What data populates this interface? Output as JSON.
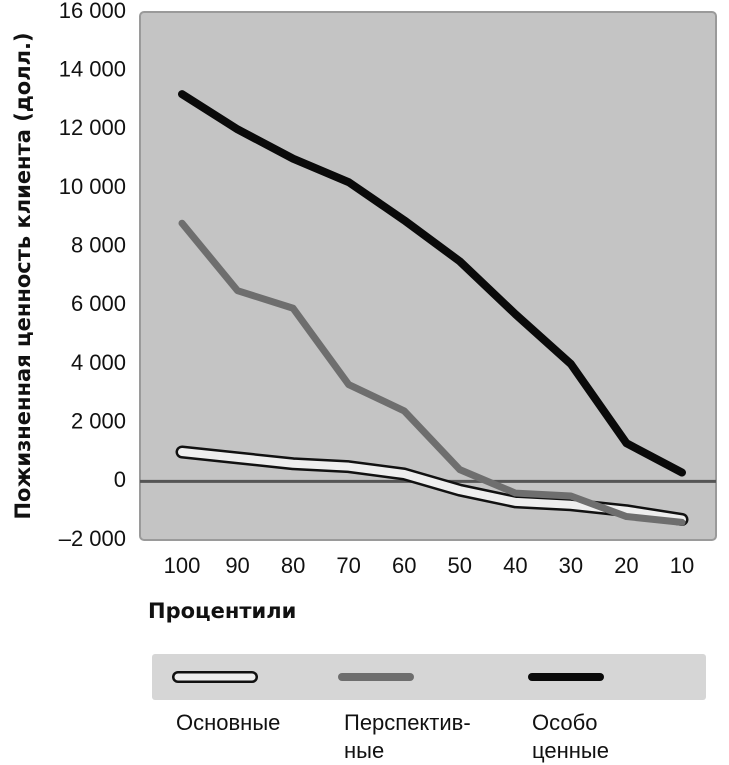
{
  "chart_data": {
    "type": "line",
    "title": "",
    "xlabel": "Процентили",
    "ylabel": "Пожизненная ценность клиента (долл.)",
    "x": [
      100,
      90,
      80,
      70,
      60,
      50,
      40,
      30,
      20,
      10
    ],
    "x_tick_labels": [
      "100",
      "90",
      "80",
      "70",
      "60",
      "50",
      "40",
      "30",
      "20",
      "10"
    ],
    "y_ticks": [
      16000,
      14000,
      12000,
      10000,
      8000,
      6000,
      4000,
      2000,
      0,
      -2000
    ],
    "y_tick_labels": [
      "16 000",
      "14 000",
      "12 000",
      "10 000",
      "8 000",
      "6 000",
      "4 000",
      "2 000",
      "0",
      "–2 000"
    ],
    "ylim": [
      -2000,
      16000
    ],
    "grid": false,
    "zero_line": true,
    "legend_position": "bottom",
    "series": [
      {
        "name": "Основные",
        "legend_lines": [
          "Основные"
        ],
        "style": "outlined",
        "color": "#eeeeee",
        "outline_color": "#111111",
        "values": [
          1000,
          800,
          600,
          500,
          250,
          -300,
          -700,
          -800,
          -1000,
          -1300
        ]
      },
      {
        "name": "Перспективные",
        "legend_lines": [
          "Перспектив-",
          "ные"
        ],
        "style": "solid",
        "color": "#6e6e6e",
        "values": [
          8800,
          6500,
          5900,
          3300,
          2400,
          400,
          -400,
          -500,
          -1200,
          -1400
        ]
      },
      {
        "name": "Особо ценные",
        "legend_lines": [
          "Особо",
          "ценные"
        ],
        "style": "solid",
        "color": "#0a0a0a",
        "values": [
          13200,
          12000,
          11000,
          10200,
          8900,
          7500,
          5700,
          4000,
          1300,
          300
        ]
      }
    ],
    "colors": {
      "plot_background": "#c4c4c4",
      "legend_background": "#d6d6d6",
      "zero_line": "#555555"
    }
  }
}
